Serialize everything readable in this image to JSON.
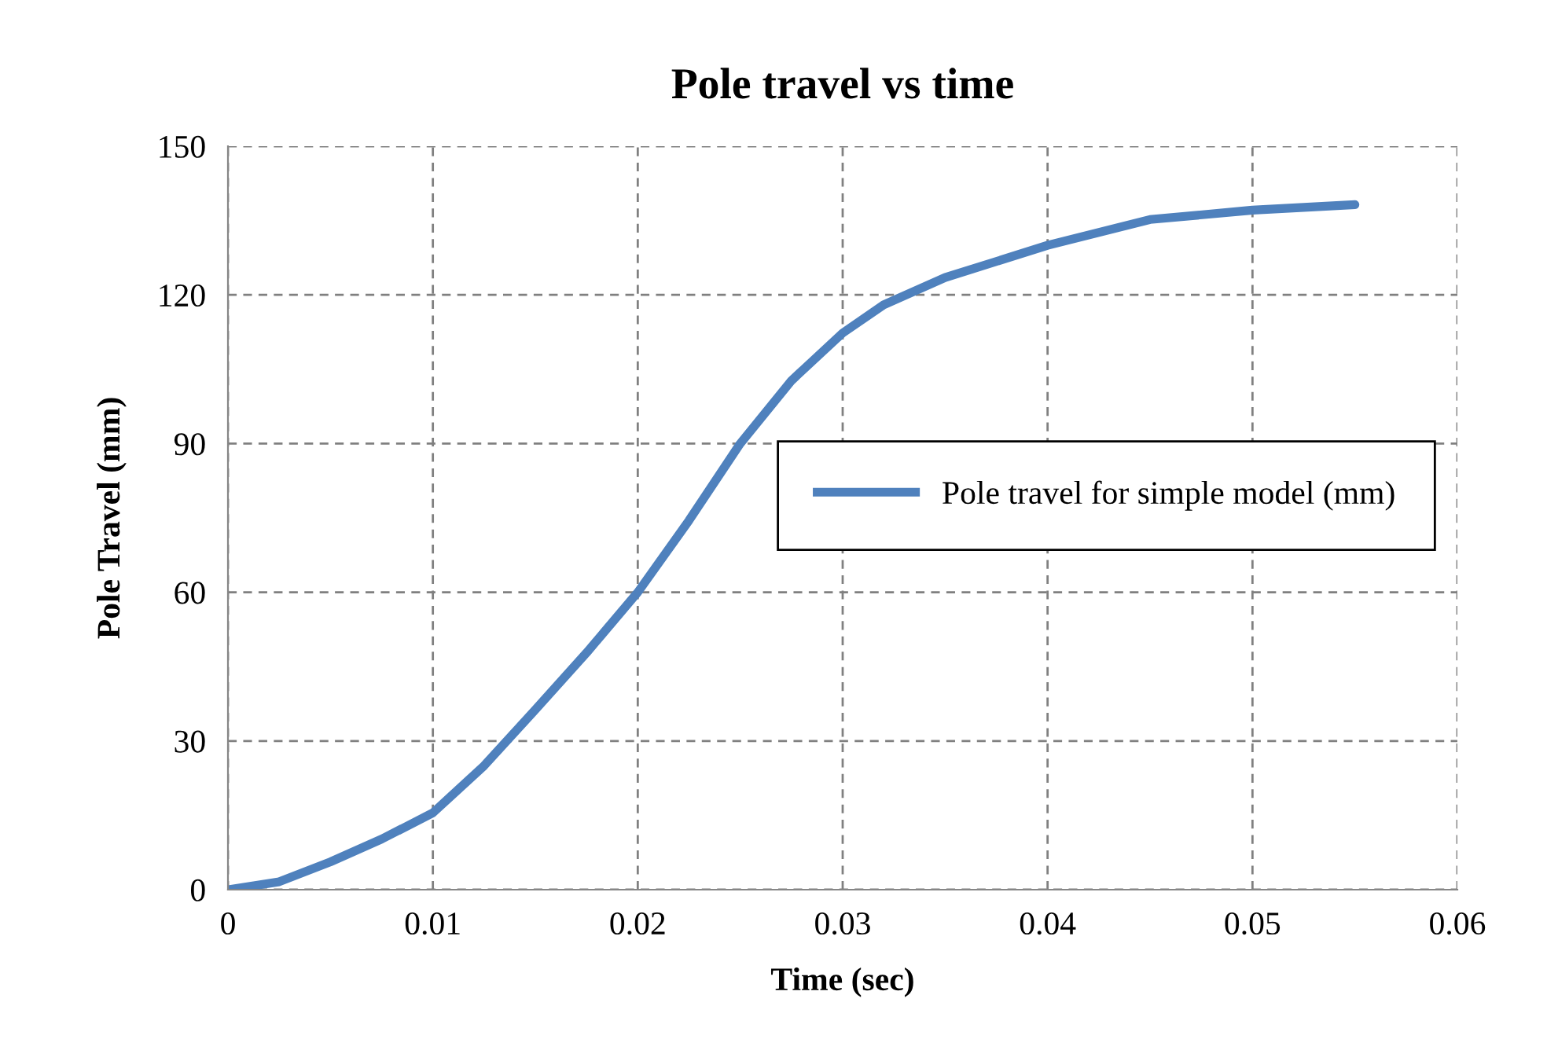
{
  "chart_data": {
    "type": "line",
    "title": "Pole travel vs time",
    "xlabel": "Time (sec)",
    "ylabel": "Pole Travel (mm)",
    "x": [
      0,
      0.0025,
      0.005,
      0.0075,
      0.01,
      0.0125,
      0.015,
      0.0175,
      0.02,
      0.0225,
      0.025,
      0.0275,
      0.03,
      0.032,
      0.035,
      0.04,
      0.045,
      0.05,
      0.055
    ],
    "series": [
      {
        "name": "Pole travel for simple model (mm)",
        "color": "#4f81bd",
        "values": [
          0,
          1.6,
          5.6,
          10.2,
          15.5,
          25,
          36.3,
          47.8,
          60,
          74.5,
          90,
          102.7,
          112.3,
          118,
          123.5,
          130,
          135.2,
          137.1,
          138.2
        ]
      }
    ],
    "xlim": [
      0,
      0.06
    ],
    "xticks": [
      0,
      0.01,
      0.02,
      0.03,
      0.04,
      0.05,
      0.06
    ],
    "ylim": [
      0,
      150
    ],
    "yticks": [
      0,
      30,
      60,
      90,
      120,
      150
    ],
    "grid": true,
    "legend": "right",
    "marker": "none",
    "line_style": "solid"
  }
}
